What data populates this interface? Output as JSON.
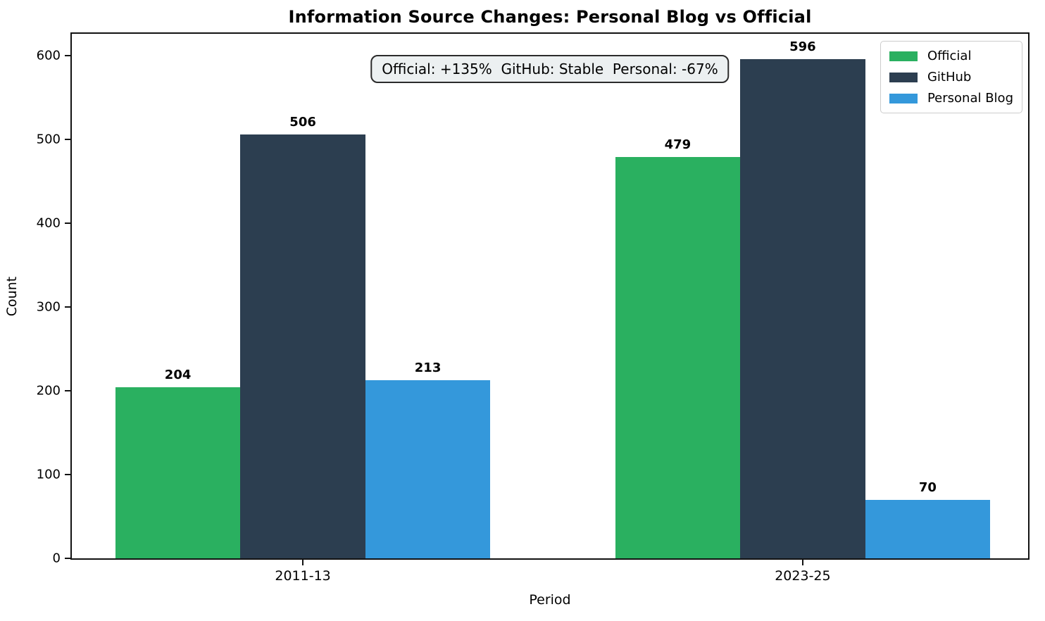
{
  "chart_data": {
    "type": "bar",
    "title": "Information Source Changes: Personal Blog vs Official",
    "xlabel": "Period",
    "ylabel": "Count",
    "categories": [
      "2011-13",
      "2023-25"
    ],
    "series": [
      {
        "name": "Official",
        "color": "#2ab060",
        "values": [
          204,
          479
        ]
      },
      {
        "name": "GitHub",
        "color": "#2c3e50",
        "values": [
          506,
          596
        ]
      },
      {
        "name": "Personal Blog",
        "color": "#3498db",
        "values": [
          213,
          70
        ]
      }
    ],
    "ylim": [
      0,
      626
    ],
    "yticks": [
      0,
      100,
      200,
      300,
      400,
      500,
      600
    ],
    "bar_labels_shown": true,
    "annotation": "Official: +135%  GitHub: Stable  Personal: -67%",
    "legend": {
      "position": "upper right",
      "entries": [
        "Official",
        "GitHub",
        "Personal Blog"
      ]
    },
    "grid": false
  }
}
